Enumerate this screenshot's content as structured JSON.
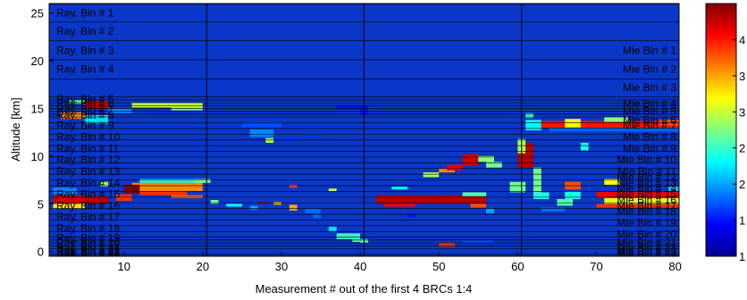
{
  "chart_data": {
    "type": "heatmap",
    "xlabel": "Measurement # out of the first 4 BRCs 1:4",
    "ylabel": "Altitude [km]",
    "xlim": [
      0.5,
      80.5
    ],
    "ylim": [
      -0.5,
      26
    ],
    "x_ticks": [
      10,
      20,
      30,
      40,
      50,
      60,
      70,
      80
    ],
    "y_ticks": [
      0,
      5,
      10,
      15,
      20,
      25
    ],
    "vertical_separators_x": [
      20.5,
      40.5,
      60.5
    ],
    "colorbar": {
      "colormap": "jet",
      "range": [
        1,
        4.5
      ],
      "tick_labels": [
        "1",
        "1",
        "2",
        "2",
        "3",
        "3",
        "4"
      ]
    },
    "bin_boundaries_km": [
      25.95,
      24.1,
      22.1,
      20.1,
      18.1,
      16.2,
      15.9,
      15.6,
      15.3,
      15.0,
      14.7,
      14.4,
      14.1,
      13.5,
      12.9,
      12.3,
      11.7,
      11.1,
      10.5,
      9.9,
      9.3,
      8.7,
      8.1,
      7.5,
      6.9,
      6.3,
      5.7,
      5.1,
      4.5,
      3.9,
      3.3,
      2.7,
      2.1,
      1.5,
      1.2,
      0.9,
      0.6,
      0.3,
      -0.3
    ],
    "ray_bin_labels": [
      {
        "text": "Ray. Bin # 1",
        "y": 25.0
      },
      {
        "text": "Ray. Bin # 2",
        "y": 23.1
      },
      {
        "text": "Ray. Bin # 3",
        "y": 21.1
      },
      {
        "text": "Ray. Bin # 4",
        "y": 19.1
      },
      {
        "text": "Ray. Bin # 5",
        "y": 16.0
      },
      {
        "text": "Ray. Bin # 6",
        "y": 15.5
      },
      {
        "text": "Ray. Bin # 7",
        "y": 14.9
      },
      {
        "text": "Ray. Bin # 8",
        "y": 14.3
      },
      {
        "text": "Ray. Bin # 9",
        "y": 13.2
      },
      {
        "text": "Ray. Bin # 10",
        "y": 12.0
      },
      {
        "text": "Ray. Bin # 11",
        "y": 10.8
      },
      {
        "text": "Ray. Bin # 12",
        "y": 9.6
      },
      {
        "text": "Ray. Bin # 13",
        "y": 8.4
      },
      {
        "text": "Ray. Bin # 14",
        "y": 7.2
      },
      {
        "text": "Ray. Bin # 15",
        "y": 6.0
      },
      {
        "text": "Ray. Bin # 16",
        "y": 4.8
      },
      {
        "text": "Ray. Bin # 17",
        "y": 3.6
      },
      {
        "text": "Ray. Bin # 18",
        "y": 2.4
      },
      {
        "text": "Ray. Bin # 19",
        "y": 1.4
      },
      {
        "text": "Ray. Bin # 20",
        "y": 0.9
      },
      {
        "text": "Ray. Bin # 21",
        "y": 0.4
      },
      {
        "text": "Ray. Bin # 22",
        "y": 0.1
      },
      {
        "text": "Ray. Bin # 23",
        "y": -0.1
      },
      {
        "text": "Ray. Bin # 24",
        "y": -0.3
      }
    ],
    "mie_bin_labels": [
      {
        "text": "Mie Bin # 1",
        "y": 21.1
      },
      {
        "text": "Mie Bin # 2",
        "y": 19.1
      },
      {
        "text": "Mie Bin # 3",
        "y": 17.2
      },
      {
        "text": "Mie Bin # 4",
        "y": 15.5
      },
      {
        "text": "Mie Bin # 5",
        "y": 14.7
      },
      {
        "text": "Mie Bin # 6",
        "y": 13.8
      },
      {
        "text": "Mie Bin # 7",
        "y": 13.2
      },
      {
        "text": "Mie Bin # 8",
        "y": 12.0
      },
      {
        "text": "Mie Bin # 9",
        "y": 10.8
      },
      {
        "text": "Mie Bin # 10",
        "y": 9.6
      },
      {
        "text": "Mie Bin # 11",
        "y": 8.4
      },
      {
        "text": "Mie Bin # 12",
        "y": 7.8
      },
      {
        "text": "Mie Bin # 13",
        "y": 7.2
      },
      {
        "text": "Mie Bin # 14",
        "y": 6.6
      },
      {
        "text": "Mie Bin # 15",
        "y": 6.0
      },
      {
        "text": "Mie Bin # 16",
        "y": 5.4
      },
      {
        "text": "Mie Bin # 17",
        "y": 4.8
      },
      {
        "text": "Mie Bin # 18",
        "y": 4.2
      },
      {
        "text": "Mie Bin # 19",
        "y": 3.0
      },
      {
        "text": "Mie Bin # 20",
        "y": 1.8
      },
      {
        "text": "Mie Bin # 21",
        "y": 0.9
      },
      {
        "text": "Mie Bin # 22",
        "y": 0.4
      },
      {
        "text": "Mie Bin # 23",
        "y": 0.0
      },
      {
        "text": "Mie Bin # 24",
        "y": -0.3
      }
    ],
    "cells": [
      [
        11,
        20,
        15.1,
        15.6,
        3.0
      ],
      [
        16,
        20,
        14.8,
        15.1,
        2.7
      ],
      [
        3,
        5,
        15.5,
        15.9,
        2.6
      ],
      [
        5,
        8,
        15.0,
        15.8,
        4.2
      ],
      [
        2,
        5,
        13.9,
        14.6,
        3.6
      ],
      [
        5,
        8,
        13.4,
        14.3,
        2.2
      ],
      [
        8,
        11,
        14.5,
        15.0,
        1.9
      ],
      [
        12,
        20,
        7.2,
        7.6,
        2.4
      ],
      [
        11,
        20,
        6.3,
        7.2,
        3.6
      ],
      [
        12,
        18,
        5.9,
        6.3,
        3.9
      ],
      [
        16,
        20,
        5.6,
        5.9,
        3.7
      ],
      [
        10,
        12,
        6.1,
        7.0,
        4.5
      ],
      [
        9,
        11,
        5.3,
        6.0,
        3.9
      ],
      [
        1,
        4,
        6.0,
        6.7,
        1.9
      ],
      [
        1,
        5,
        5.0,
        5.9,
        4.2
      ],
      [
        1,
        5,
        4.5,
        5.0,
        3.3
      ],
      [
        5,
        8,
        5.0,
        5.8,
        4.3
      ],
      [
        7,
        8,
        6.8,
        7.3,
        2.8
      ],
      [
        19,
        21,
        7.2,
        7.6,
        2.7
      ],
      [
        21,
        22,
        5.0,
        5.4,
        2.7
      ],
      [
        25,
        30,
        13.0,
        13.6,
        1.7
      ],
      [
        26,
        29,
        12.0,
        12.8,
        1.9
      ],
      [
        28,
        29,
        11.4,
        11.9,
        2.9
      ],
      [
        30,
        32,
        11.5,
        12.0,
        1.6
      ],
      [
        33,
        35,
        12.0,
        12.4,
        1.6
      ],
      [
        37,
        40,
        14.9,
        15.3,
        1.5
      ],
      [
        40,
        41,
        14.3,
        15.3,
        1.5
      ],
      [
        27,
        28,
        5.0,
        5.2,
        4.4
      ],
      [
        29,
        30,
        4.9,
        5.2,
        3.5
      ],
      [
        31,
        32,
        4.3,
        4.9,
        3.5
      ],
      [
        33,
        35,
        4.0,
        4.5,
        1.8
      ],
      [
        34,
        35,
        3.5,
        3.9,
        1.8
      ],
      [
        36,
        37,
        2.1,
        2.6,
        2.2
      ],
      [
        37,
        40,
        1.3,
        1.9,
        2.5
      ],
      [
        39,
        40,
        1.0,
        1.3,
        2.6
      ],
      [
        40,
        41,
        0.9,
        1.3,
        2.6
      ],
      [
        26,
        27,
        4.4,
        4.8,
        2.0
      ],
      [
        23,
        25,
        4.7,
        5.0,
        2.3
      ],
      [
        31,
        32,
        6.7,
        7.0,
        3.8
      ],
      [
        36,
        37,
        6.3,
        6.6,
        3.0
      ],
      [
        42,
        56,
        5.0,
        5.9,
        4.3
      ],
      [
        43,
        47,
        4.7,
        5.0,
        4.1
      ],
      [
        44,
        46,
        6.5,
        6.8,
        2.3
      ],
      [
        54,
        56,
        4.6,
        5.0,
        3.8
      ],
      [
        53,
        56,
        5.8,
        6.2,
        2.6
      ],
      [
        50,
        52,
        8.3,
        8.7,
        3.6
      ],
      [
        51,
        53,
        8.5,
        9.1,
        4.1
      ],
      [
        53,
        55,
        9.0,
        10.2,
        4.2
      ],
      [
        55,
        57,
        9.4,
        10.0,
        2.8
      ],
      [
        48,
        50,
        7.8,
        8.3,
        2.9
      ],
      [
        56,
        58,
        8.8,
        9.4,
        2.7
      ],
      [
        60,
        62,
        8.8,
        11.4,
        4.3
      ],
      [
        60,
        61,
        10.3,
        11.8,
        2.9
      ],
      [
        62,
        63,
        6.0,
        8.8,
        2.7
      ],
      [
        62,
        64,
        5.5,
        6.2,
        2.4
      ],
      [
        61,
        63,
        12.7,
        13.8,
        2.3
      ],
      [
        63,
        81,
        13.0,
        13.7,
        4.0
      ],
      [
        66,
        68,
        13.0,
        13.9,
        3.2
      ],
      [
        64,
        81,
        12.6,
        13.0,
        1.8
      ],
      [
        61,
        62,
        14.0,
        14.5,
        2.5
      ],
      [
        71,
        74,
        13.6,
        14.1,
        2.8
      ],
      [
        78,
        81,
        13.2,
        13.8,
        3.8
      ],
      [
        59,
        61,
        6.2,
        7.3,
        2.7
      ],
      [
        63,
        66,
        4.2,
        4.6,
        1.8
      ],
      [
        65,
        67,
        4.8,
        5.5,
        2.6
      ],
      [
        66,
        68,
        6.5,
        7.3,
        3.8
      ],
      [
        66,
        68,
        5.5,
        6.3,
        2.4
      ],
      [
        68,
        69,
        10.6,
        11.4,
        2.4
      ],
      [
        70,
        81,
        5.6,
        6.3,
        4.1
      ],
      [
        70,
        81,
        4.6,
        5.0,
        3.9
      ],
      [
        71,
        73,
        7.0,
        7.6,
        3.2
      ],
      [
        71,
        81,
        5.0,
        5.6,
        3.1
      ],
      [
        79,
        81,
        6.3,
        6.8,
        2.1
      ],
      [
        50,
        52,
        0.5,
        0.9,
        3.9
      ],
      [
        53,
        57,
        0.9,
        1.2,
        1.7
      ],
      [
        56,
        57,
        4.0,
        4.5,
        2.0
      ],
      [
        46,
        47,
        3.6,
        4.0,
        1.5
      ],
      [
        58,
        59,
        0.5,
        0.9,
        1.6
      ]
    ]
  }
}
